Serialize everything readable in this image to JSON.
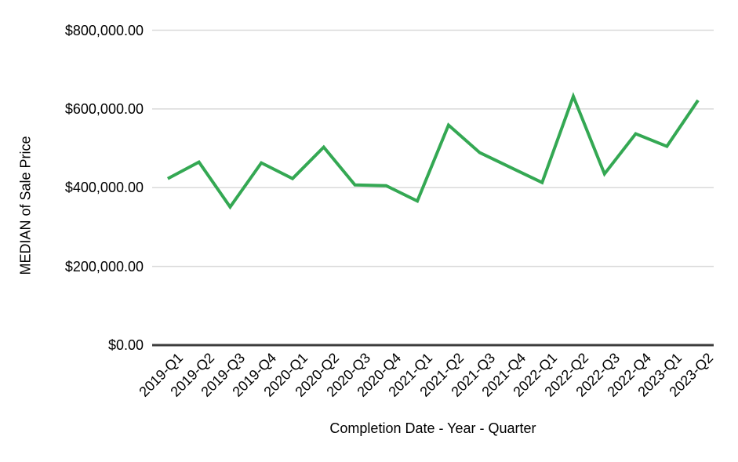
{
  "chart_data": {
    "type": "line",
    "title": "",
    "xlabel": "Completion Date - Year - Quarter",
    "ylabel": "MEDIAN of Sale Price",
    "categories": [
      "2019-Q1",
      "2019-Q2",
      "2019-Q3",
      "2019-Q4",
      "2020-Q1",
      "2020-Q2",
      "2020-Q3",
      "2020-Q4",
      "2021-Q1",
      "2021-Q2",
      "2021-Q3",
      "2021-Q4",
      "2022-Q1",
      "2022-Q2",
      "2022-Q3",
      "2022-Q4",
      "2023-Q1",
      "2023-Q2"
    ],
    "values": [
      423000,
      465000,
      351000,
      463000,
      423000,
      503000,
      407000,
      405000,
      366000,
      559000,
      489000,
      451000,
      413000,
      632000,
      435000,
      537000,
      505000,
      622000
    ],
    "ylim": [
      0,
      800000
    ],
    "yticks": [
      0,
      200000,
      400000,
      600000,
      800000
    ],
    "ytick_labels": [
      "$0.00",
      "$200,000.00",
      "$400,000.00",
      "$600,000.00",
      "$800,000.00"
    ],
    "grid": true,
    "legend_position": "none",
    "colors": {
      "line": "#34a853",
      "gridline": "#d9d9d9",
      "axis": "#3c3c3c",
      "text": "#000000",
      "background": "#ffffff"
    }
  }
}
